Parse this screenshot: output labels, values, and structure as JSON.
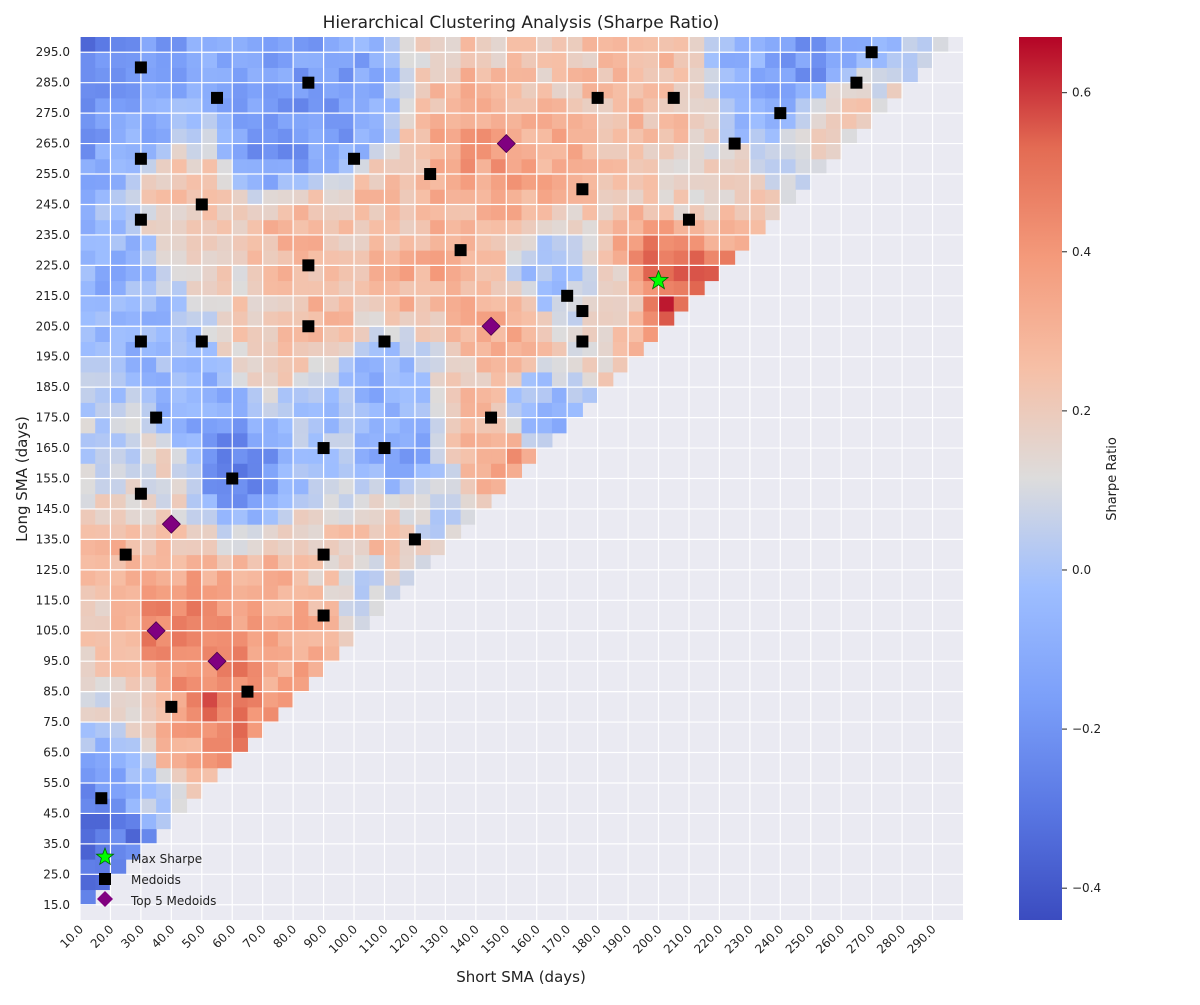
{
  "chart_data": {
    "type": "heatmap",
    "title": "Hierarchical Clustering Analysis (Sharpe Ratio)",
    "xlabel": "Short SMA (days)",
    "ylabel": "Long SMA (days)",
    "x_range": [
      10,
      300
    ],
    "y_range": [
      10,
      300
    ],
    "cell_size_days": 5,
    "x_tick_labels": [
      "10.0",
      "20.0",
      "30.0",
      "40.0",
      "50.0",
      "60.0",
      "70.0",
      "80.0",
      "90.0",
      "100.0",
      "110.0",
      "120.0",
      "130.0",
      "140.0",
      "150.0",
      "160.0",
      "170.0",
      "180.0",
      "190.0",
      "200.0",
      "210.0",
      "220.0",
      "230.0",
      "240.0",
      "250.0",
      "260.0",
      "270.0",
      "280.0",
      "290.0"
    ],
    "y_tick_labels": [
      "15.0",
      "25.0",
      "35.0",
      "45.0",
      "55.0",
      "65.0",
      "75.0",
      "85.0",
      "95.0",
      "105.0",
      "115.0",
      "125.0",
      "135.0",
      "145.0",
      "155.0",
      "165.0",
      "175.0",
      "185.0",
      "195.0",
      "205.0",
      "215.0",
      "225.0",
      "235.0",
      "245.0",
      "255.0",
      "265.0",
      "275.0",
      "285.0",
      "295.0"
    ],
    "grid": true,
    "colorbar": {
      "label": "Sharpe Ratio",
      "colormap": "coolwarm",
      "vmin": -0.44,
      "vmax": 0.67,
      "tick_values": [
        0.6,
        0.4,
        0.2,
        0.0,
        -0.2,
        -0.4
      ],
      "tick_labels": [
        "0.6",
        "0.4",
        "0.2",
        "0.0",
        "−0.2",
        "−0.4"
      ]
    },
    "sharpe_patches": [
      {
        "x": 10,
        "y": 295,
        "value": -0.33
      },
      {
        "x": 15,
        "y": 290,
        "value": -0.15
      },
      {
        "x": 12,
        "y": 275,
        "value": -0.2
      },
      {
        "x": 28,
        "y": 270,
        "value": -0.1
      },
      {
        "x": 15,
        "y": 225,
        "value": -0.08
      },
      {
        "x": 45,
        "y": 250,
        "value": 0.22
      },
      {
        "x": 55,
        "y": 230,
        "value": 0.18
      },
      {
        "x": 75,
        "y": 265,
        "value": -0.2
      },
      {
        "x": 90,
        "y": 275,
        "value": -0.18
      },
      {
        "x": 80,
        "y": 235,
        "value": 0.28
      },
      {
        "x": 110,
        "y": 240,
        "value": 0.25
      },
      {
        "x": 125,
        "y": 225,
        "value": 0.32
      },
      {
        "x": 145,
        "y": 262,
        "value": 0.38
      },
      {
        "x": 140,
        "y": 240,
        "value": 0.3
      },
      {
        "x": 160,
        "y": 260,
        "value": 0.33
      },
      {
        "x": 160,
        "y": 290,
        "value": 0.22
      },
      {
        "x": 200,
        "y": 280,
        "value": 0.26
      },
      {
        "x": 210,
        "y": 250,
        "value": 0.18
      },
      {
        "x": 235,
        "y": 285,
        "value": -0.1
      },
      {
        "x": 250,
        "y": 290,
        "value": -0.2
      },
      {
        "x": 260,
        "y": 275,
        "value": 0.2
      },
      {
        "x": 165,
        "y": 222,
        "value": -0.05
      },
      {
        "x": 200,
        "y": 222,
        "value": 0.5
      },
      {
        "x": 205,
        "y": 212,
        "value": 0.58
      },
      {
        "x": 185,
        "y": 215,
        "value": 0.12
      },
      {
        "x": 150,
        "y": 205,
        "value": 0.32
      },
      {
        "x": 160,
        "y": 175,
        "value": -0.08
      },
      {
        "x": 140,
        "y": 175,
        "value": 0.25
      },
      {
        "x": 150,
        "y": 160,
        "value": 0.4
      },
      {
        "x": 110,
        "y": 185,
        "value": -0.08
      },
      {
        "x": 115,
        "y": 165,
        "value": -0.15
      },
      {
        "x": 95,
        "y": 175,
        "value": 0.0
      },
      {
        "x": 60,
        "y": 160,
        "value": -0.25
      },
      {
        "x": 50,
        "y": 180,
        "value": -0.1
      },
      {
        "x": 70,
        "y": 200,
        "value": 0.2
      },
      {
        "x": 85,
        "y": 205,
        "value": 0.28
      },
      {
        "x": 30,
        "y": 200,
        "value": -0.05
      },
      {
        "x": 20,
        "y": 170,
        "value": 0.05
      },
      {
        "x": 35,
        "y": 155,
        "value": 0.15
      },
      {
        "x": 30,
        "y": 130,
        "value": 0.28
      },
      {
        "x": 40,
        "y": 105,
        "value": 0.48
      },
      {
        "x": 55,
        "y": 95,
        "value": 0.45
      },
      {
        "x": 55,
        "y": 78,
        "value": 0.52
      },
      {
        "x": 45,
        "y": 65,
        "value": 0.33
      },
      {
        "x": 25,
        "y": 80,
        "value": 0.12
      },
      {
        "x": 15,
        "y": 100,
        "value": 0.2
      },
      {
        "x": 80,
        "y": 115,
        "value": 0.33
      },
      {
        "x": 80,
        "y": 90,
        "value": 0.35
      },
      {
        "x": 90,
        "y": 125,
        "value": 0.2
      },
      {
        "x": 105,
        "y": 120,
        "value": 0.05
      },
      {
        "x": 110,
        "y": 135,
        "value": 0.25
      },
      {
        "x": 125,
        "y": 145,
        "value": 0.05
      },
      {
        "x": 15,
        "y": 45,
        "value": -0.35
      },
      {
        "x": 25,
        "y": 38,
        "value": -0.3
      },
      {
        "x": 10,
        "y": 20,
        "value": -0.3
      },
      {
        "x": 20,
        "y": 55,
        "value": -0.1
      },
      {
        "x": 35,
        "y": 50,
        "value": 0.05
      }
    ],
    "max_sharpe": {
      "name": "Max Sharpe",
      "x": 200,
      "y": 220
    },
    "medoids": {
      "name": "Medoids",
      "points": [
        [
          30,
          290
        ],
        [
          55,
          280
        ],
        [
          85,
          285
        ],
        [
          30,
          260
        ],
        [
          100,
          260
        ],
        [
          125,
          255
        ],
        [
          30,
          240
        ],
        [
          50,
          245
        ],
        [
          135,
          230
        ],
        [
          85,
          225
        ],
        [
          30,
          200
        ],
        [
          50,
          200
        ],
        [
          85,
          205
        ],
        [
          110,
          200
        ],
        [
          35,
          175
        ],
        [
          90,
          165
        ],
        [
          110,
          165
        ],
        [
          60,
          155
        ],
        [
          30,
          150
        ],
        [
          25,
          130
        ],
        [
          90,
          130
        ],
        [
          120,
          135
        ],
        [
          90,
          110
        ],
        [
          65,
          85
        ],
        [
          40,
          80
        ],
        [
          17,
          50
        ],
        [
          145,
          175
        ],
        [
          175,
          200
        ],
        [
          175,
          210
        ],
        [
          170,
          215
        ],
        [
          175,
          250
        ],
        [
          210,
          240
        ],
        [
          180,
          280
        ],
        [
          205,
          280
        ],
        [
          225,
          265
        ],
        [
          240,
          275
        ],
        [
          265,
          285
        ],
        [
          270,
          295
        ]
      ]
    },
    "top5_medoids": {
      "name": "Top 5 Medoids",
      "points": [
        [
          150,
          265
        ],
        [
          145,
          205
        ],
        [
          40,
          140
        ],
        [
          35,
          105
        ],
        [
          55,
          95
        ]
      ]
    },
    "legend": {
      "placement": "lower-left",
      "entries": [
        "Max Sharpe",
        "Medoids",
        "Top 5 Medoids"
      ]
    }
  },
  "colors": {
    "plot_background": "#eaeaf2",
    "grid": "#ffffff",
    "max_sharpe_marker": "#00ff00",
    "medoid_marker": "#000000",
    "top5_marker": "#800080"
  }
}
